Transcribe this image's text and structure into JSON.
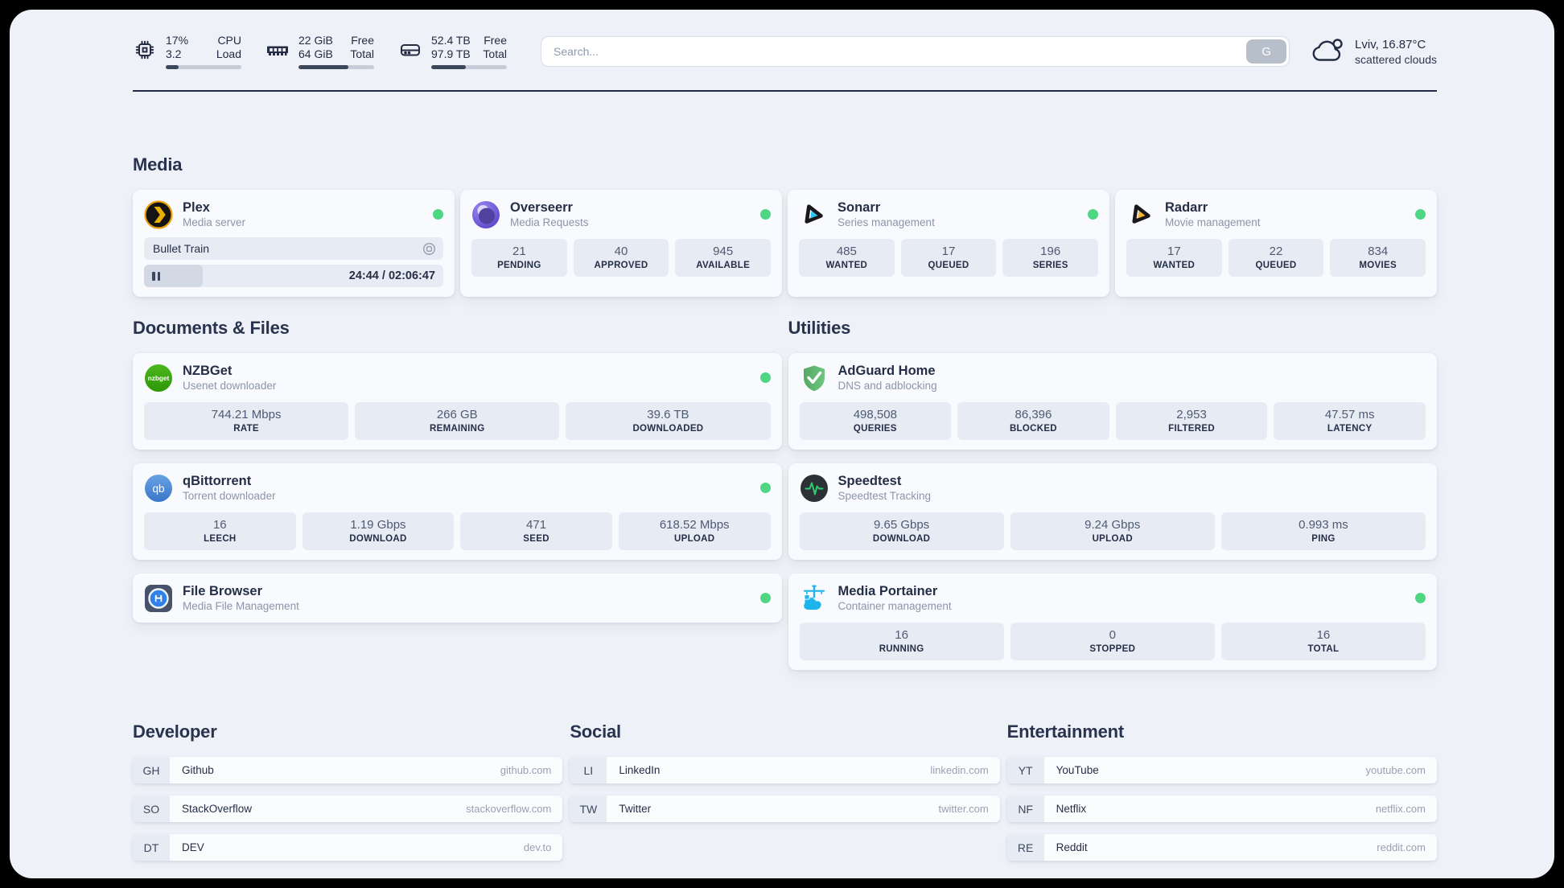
{
  "colors": {
    "status_online": "#4fd683",
    "text_dark": "#232c43",
    "plex_gold": "#e8a00c",
    "sonarr_cyan": "#2dc5f1",
    "radarr_yellow": "#f9b42d",
    "nzbget_green": "#3fae14",
    "qbittorrent_blue": "#4382cc",
    "filebrowser_blue": "#2f80e8",
    "adguard_green": "#5fb36f",
    "speedtest_pulse": "#2ecc71",
    "portainer_blue": "#1db4ea"
  },
  "header": {
    "metrics": [
      {
        "icon": "cpu-icon",
        "value_top": "17%",
        "value_bottom": "3.2",
        "label_top": "CPU",
        "label_bottom": "Load",
        "progress_pct": 17
      },
      {
        "icon": "memory-icon",
        "value_top": "22 GiB",
        "value_bottom": "64 GiB",
        "label_top": "Free",
        "label_bottom": "Total",
        "progress_pct": 66
      },
      {
        "icon": "disk-icon",
        "value_top": "52.4 TB",
        "value_bottom": "97.9 TB",
        "label_top": "Free",
        "label_bottom": "Total",
        "progress_pct": 46
      }
    ],
    "search": {
      "placeholder": "Search...",
      "provider_button": "G"
    },
    "weather": {
      "summary": "Lviv, 16.87°C",
      "condition": "scattered clouds"
    }
  },
  "sections": {
    "media": "Media",
    "documents": "Documents & Files",
    "utilities": "Utilities"
  },
  "services": {
    "plex": {
      "title": "Plex",
      "subtitle": "Media server",
      "status": "online",
      "now_playing": "Bullet Train",
      "elapsed_total": "24:44 / 02:06:47",
      "progress_pct": 19.6
    },
    "overseerr": {
      "title": "Overseerr",
      "subtitle": "Media Requests",
      "status": "online",
      "stats": [
        {
          "value": "21",
          "label": "PENDING"
        },
        {
          "value": "40",
          "label": "APPROVED"
        },
        {
          "value": "945",
          "label": "AVAILABLE"
        }
      ]
    },
    "sonarr": {
      "title": "Sonarr",
      "subtitle": "Series management",
      "status": "online",
      "stats": [
        {
          "value": "485",
          "label": "WANTED"
        },
        {
          "value": "17",
          "label": "QUEUED"
        },
        {
          "value": "196",
          "label": "SERIES"
        }
      ]
    },
    "radarr": {
      "title": "Radarr",
      "subtitle": "Movie management",
      "status": "online",
      "stats": [
        {
          "value": "17",
          "label": "WANTED"
        },
        {
          "value": "22",
          "label": "QUEUED"
        },
        {
          "value": "834",
          "label": "MOVIES"
        }
      ]
    },
    "nzbget": {
      "title": "NZBGet",
      "subtitle": "Usenet downloader",
      "status": "online",
      "stats": [
        {
          "value": "744.21 Mbps",
          "label": "RATE"
        },
        {
          "value": "266 GB",
          "label": "REMAINING"
        },
        {
          "value": "39.6 TB",
          "label": "DOWNLOADED"
        }
      ]
    },
    "qbittorrent": {
      "title": "qBittorrent",
      "subtitle": "Torrent downloader",
      "status": "online",
      "stats": [
        {
          "value": "16",
          "label": "LEECH"
        },
        {
          "value": "1.19 Gbps",
          "label": "DOWNLOAD"
        },
        {
          "value": "471",
          "label": "SEED"
        },
        {
          "value": "618.52 Mbps",
          "label": "UPLOAD"
        }
      ]
    },
    "filebrowser": {
      "title": "File Browser",
      "subtitle": "Media File Management",
      "status": "online"
    },
    "adguard": {
      "title": "AdGuard Home",
      "subtitle": "DNS and adblocking",
      "stats": [
        {
          "value": "498,508",
          "label": "QUERIES"
        },
        {
          "value": "86,396",
          "label": "BLOCKED"
        },
        {
          "value": "2,953",
          "label": "FILTERED"
        },
        {
          "value": "47.57 ms",
          "label": "LATENCY"
        }
      ]
    },
    "speedtest": {
      "title": "Speedtest",
      "subtitle": "Speedtest Tracking",
      "stats": [
        {
          "value": "9.65 Gbps",
          "label": "DOWNLOAD"
        },
        {
          "value": "9.24 Gbps",
          "label": "UPLOAD"
        },
        {
          "value": "0.993 ms",
          "label": "PING"
        }
      ]
    },
    "portainer": {
      "title": "Media Portainer",
      "subtitle": "Container management",
      "status": "online",
      "stats": [
        {
          "value": "16",
          "label": "RUNNING"
        },
        {
          "value": "0",
          "label": "STOPPED"
        },
        {
          "value": "16",
          "label": "TOTAL"
        }
      ]
    }
  },
  "bookmarks": {
    "developer": {
      "title": "Developer",
      "items": [
        {
          "abbr": "GH",
          "name": "Github",
          "url": "github.com"
        },
        {
          "abbr": "SO",
          "name": "StackOverflow",
          "url": "stackoverflow.com"
        },
        {
          "abbr": "DT",
          "name": "DEV",
          "url": "dev.to"
        }
      ]
    },
    "social": {
      "title": "Social",
      "items": [
        {
          "abbr": "LI",
          "name": "LinkedIn",
          "url": "linkedin.com"
        },
        {
          "abbr": "TW",
          "name": "Twitter",
          "url": "twitter.com"
        }
      ]
    },
    "entertainment": {
      "title": "Entertainment",
      "items": [
        {
          "abbr": "YT",
          "name": "YouTube",
          "url": "youtube.com"
        },
        {
          "abbr": "NF",
          "name": "Netflix",
          "url": "netflix.com"
        },
        {
          "abbr": "RE",
          "name": "Reddit",
          "url": "reddit.com"
        }
      ]
    }
  }
}
